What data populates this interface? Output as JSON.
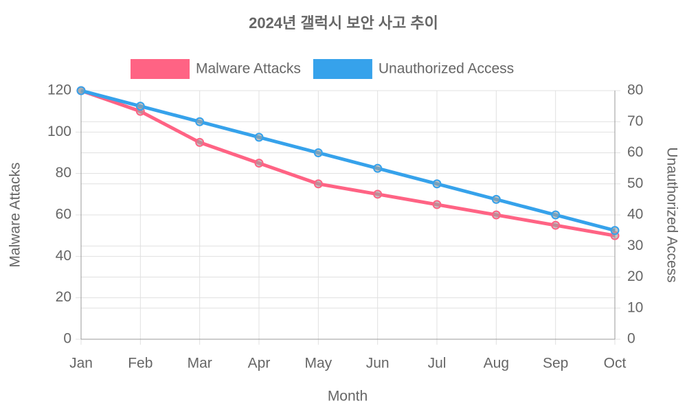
{
  "chart_data": {
    "type": "line",
    "title": "2024년 갤럭시 보안 사고 추이",
    "x_label": "Month",
    "y_label": "Malware Attacks",
    "y2_label": "Unauthorized Access",
    "categories": [
      "Jan",
      "Feb",
      "Mar",
      "Apr",
      "May",
      "Jun",
      "Jul",
      "Aug",
      "Sep",
      "Oct"
    ],
    "series": [
      {
        "name": "Malware Attacks",
        "color": "#ff6384",
        "values": [
          120,
          110,
          95,
          85,
          75,
          70,
          65,
          60,
          55,
          50
        ]
      },
      {
        "name": "Unauthorized Access",
        "color": "#36a2eb",
        "axis": "y2",
        "values": [
          80,
          75,
          70,
          65,
          60,
          55,
          50,
          45,
          40,
          35
        ]
      }
    ],
    "ylim": [
      0,
      120
    ],
    "yticks": [
      0,
      20,
      40,
      60,
      80,
      100,
      120
    ],
    "y2lim": [
      0,
      80
    ],
    "y2ticks": [
      0,
      10,
      20,
      30,
      40,
      50,
      60,
      70,
      80
    ],
    "grid": true,
    "legend": "top"
  }
}
